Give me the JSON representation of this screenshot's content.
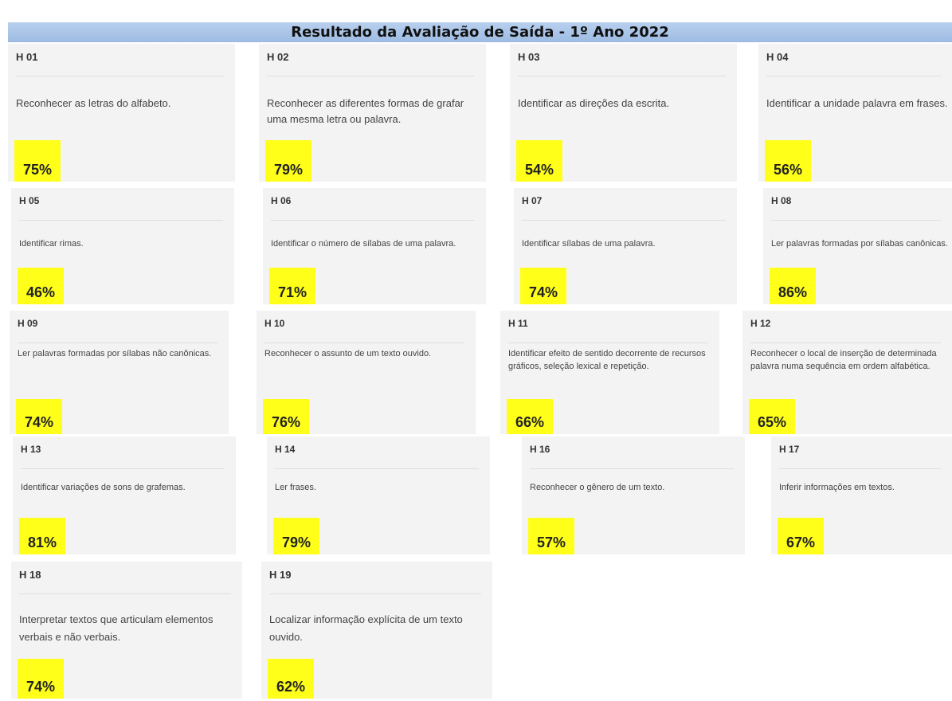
{
  "title": "Resultado da Avaliação de Saída - 1º Ano 2022",
  "cards": [
    {
      "code": "H 01",
      "text": "Reconhecer as letras do alfabeto.",
      "score": "75%"
    },
    {
      "code": "H 02",
      "text": "Reconhecer as diferentes formas de grafar uma mesma letra ou palavra.",
      "score": "79%"
    },
    {
      "code": "H 03",
      "text": "Identificar as direções da escrita.",
      "score": "54%"
    },
    {
      "code": "H 04",
      "text": "Identificar a unidade palavra em frases.",
      "score": "56%"
    },
    {
      "code": "H 05",
      "text": "Identificar rimas.",
      "score": "46%"
    },
    {
      "code": "H 06",
      "text": "Identificar o número de sílabas de uma palavra.",
      "score": "71%"
    },
    {
      "code": "H 07",
      "text": "Identificar sílabas de uma palavra.",
      "score": "74%"
    },
    {
      "code": "H 08",
      "text": "Ler palavras formadas por sílabas canônicas.",
      "score": "86%"
    },
    {
      "code": "H 09",
      "text": "Ler palavras formadas por sílabas não canônicas.",
      "score": "74%"
    },
    {
      "code": "H 10",
      "text": "Reconhecer o assunto de um texto ouvido.",
      "score": "76%"
    },
    {
      "code": "H 11",
      "text": "Identificar efeito de sentido decorrente de recursos gráficos, seleção lexical e repetição.",
      "score": "66%"
    },
    {
      "code": "H 12",
      "text": "Reconhecer o local de inserção de determinada palavra numa sequência em ordem alfabética.",
      "score": "65%"
    },
    {
      "code": "H 13",
      "text": "Identificar variações de sons de grafemas.",
      "score": "81%"
    },
    {
      "code": "H 14",
      "text": "Ler frases.",
      "score": "79%"
    },
    {
      "code": "H 16",
      "text": "Reconhecer o gênero de um texto.",
      "score": "57%"
    },
    {
      "code": "H 17",
      "text": "Inferir informações em textos.",
      "score": "67%"
    },
    {
      "code": "H 18",
      "text": "Interpretar textos que articulam elementos verbais e não verbais.",
      "score": "74%"
    },
    {
      "code": "H 19",
      "text": "Localizar informação explícita de um texto ouvido.",
      "score": "62%"
    }
  ]
}
